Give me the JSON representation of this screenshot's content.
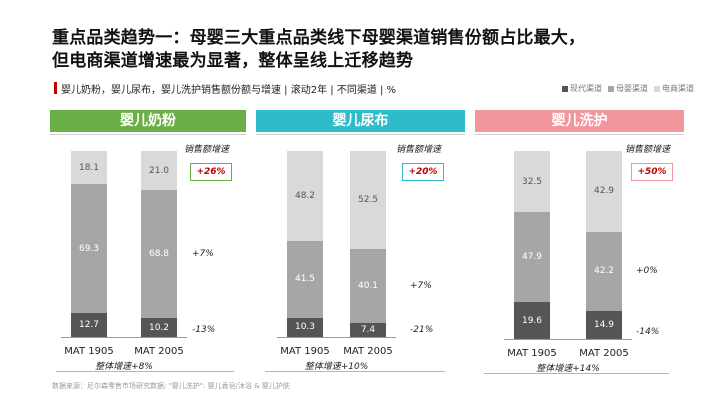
{
  "title_line1": "重点品类趋势一：母婴三大重点品类线下母婴渠道销售份额占比最大，",
  "title_line2": "但电商渠道增速最为显著，整体呈线上迁移趋势",
  "subtitle": "婴儿奶粉，婴儿尿布，婴儿洗护销售额份额与增速 | 滚动2年 | 不同渠道 | %",
  "legend": [
    {
      "label": "现代渠道",
      "color": "#555555"
    },
    {
      "label": "母婴渠道",
      "color": "#a6a6a6"
    },
    {
      "label": "电商渠道",
      "color": "#d9d9d9"
    }
  ],
  "growth_label": "销售额增速",
  "source": "数据来源：尼尔森零售市场研究数据; \"婴儿洗护\": 婴儿香皂/沐浴 & 婴儿护肤",
  "chart_data": [
    {
      "type": "bar",
      "stacked": true,
      "title": "婴儿奶粉",
      "header_color": "#6aaf45",
      "categories": [
        "MAT 1905",
        "MAT 2005"
      ],
      "series": [
        {
          "name": "现代渠道",
          "values": [
            12.7,
            10.2
          ],
          "growth": "-13%"
        },
        {
          "name": "母婴渠道",
          "values": [
            69.3,
            68.8
          ],
          "growth": "+7%"
        },
        {
          "name": "电商渠道",
          "values": [
            18.1,
            21.0
          ],
          "growth": "+26%"
        }
      ],
      "overall_growth": "整体增速+8%",
      "ylim": [
        0,
        100
      ]
    },
    {
      "type": "bar",
      "stacked": true,
      "title": "婴儿尿布",
      "header_color": "#2ebccb",
      "categories": [
        "MAT 1905",
        "MAT 2005"
      ],
      "series": [
        {
          "name": "现代渠道",
          "values": [
            10.3,
            7.4
          ],
          "growth": "-21%"
        },
        {
          "name": "母婴渠道",
          "values": [
            41.5,
            40.1
          ],
          "growth": "+7%"
        },
        {
          "name": "电商渠道",
          "values": [
            48.2,
            52.5
          ],
          "growth": "+20%"
        }
      ],
      "overall_growth": "整体增速+10%",
      "ylim": [
        0,
        100
      ]
    },
    {
      "type": "bar",
      "stacked": true,
      "title": "婴儿洗护",
      "header_color": "#f1969c",
      "categories": [
        "MAT 1905",
        "MAT 2005"
      ],
      "series": [
        {
          "name": "现代渠道",
          "values": [
            19.6,
            14.9
          ],
          "growth": "-14%"
        },
        {
          "name": "母婴渠道",
          "values": [
            47.9,
            42.2
          ],
          "growth": "+0%"
        },
        {
          "name": "电商渠道",
          "values": [
            32.5,
            42.9
          ],
          "growth": "+50%"
        }
      ],
      "overall_growth": "整体增速+14%",
      "ylim": [
        0,
        100
      ]
    }
  ]
}
